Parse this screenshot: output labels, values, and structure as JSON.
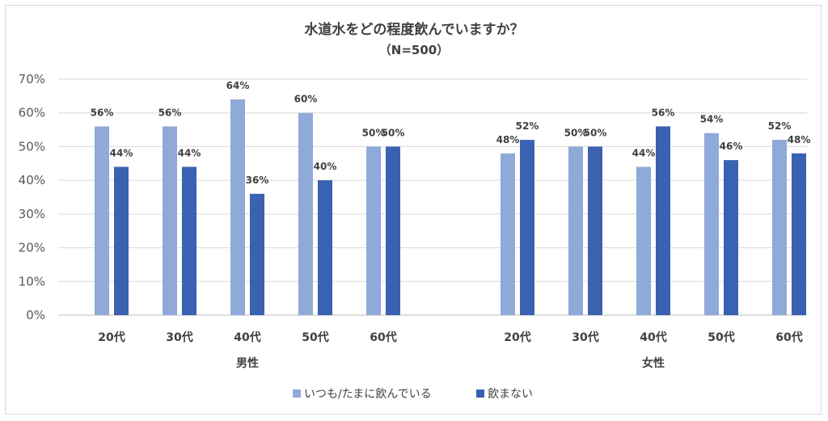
{
  "chart_data": {
    "type": "bar",
    "title": "水道水をどの程度飲んでいますか？",
    "subtitle": "（N=500）",
    "groups": [
      {
        "name": "男性",
        "categories": [
          "20代",
          "30代",
          "40代",
          "50代",
          "60代"
        ]
      },
      {
        "name": "女性",
        "categories": [
          "20代",
          "30代",
          "40代",
          "50代",
          "60代"
        ]
      }
    ],
    "series": [
      {
        "name": "いつも/たまに飲んでいる",
        "color": "#8FA9D9",
        "values": [
          56,
          56,
          64,
          60,
          50,
          48,
          50,
          44,
          54,
          52
        ]
      },
      {
        "name": "飲まない",
        "color": "#3A62B0",
        "values": [
          44,
          44,
          36,
          40,
          50,
          52,
          50,
          56,
          46,
          48
        ]
      }
    ],
    "value_suffix": "%",
    "ylim": [
      0,
      70
    ],
    "yticks": [
      "0%",
      "10%",
      "20%",
      "30%",
      "40%",
      "50%",
      "60%",
      "70%"
    ],
    "grid": true,
    "legend_position": "bottom"
  }
}
